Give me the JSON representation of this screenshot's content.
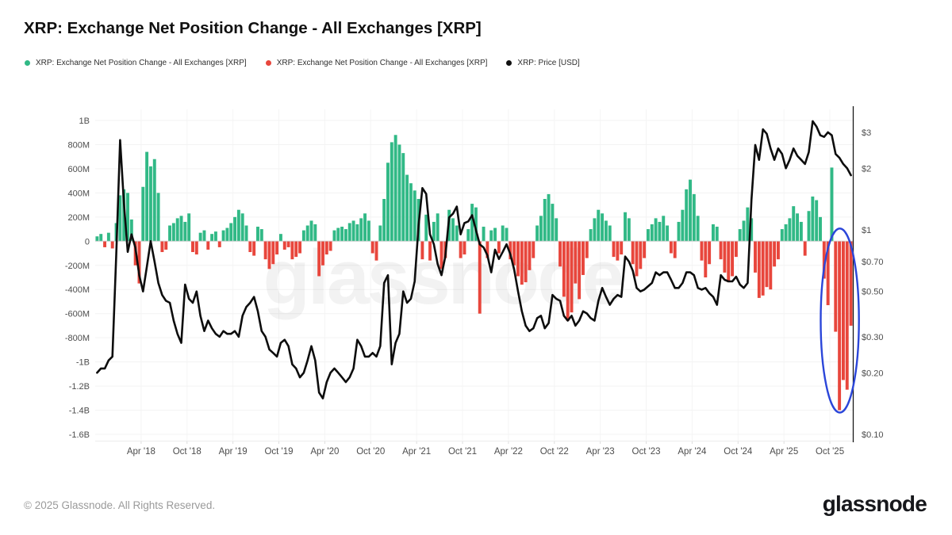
{
  "title": "XRP: Exchange Net Position Change - All Exchanges [XRP]",
  "legend": [
    {
      "label": "XRP: Exchange Net Position Change - All Exchanges [XRP]",
      "color": "#31b986"
    },
    {
      "label": "XRP: Exchange Net Position Change - All Exchanges [XRP]",
      "color": "#e8463c"
    },
    {
      "label": "XRP: Price [USD]",
      "color": "#111111"
    }
  ],
  "watermark": "glassnode",
  "footer": {
    "copyright": "© 2025 Glassnode. All Rights Reserved.",
    "brand": "glassnode"
  },
  "chart_data": {
    "type": "combo",
    "title": "XRP: Exchange Net Position Change - All Exchanges [XRP]",
    "x_start": "Oct 2017",
    "x_end": "Dec 2025",
    "sampling": "semi-monthly (2 samples per month, 99 months)",
    "x_ticks": [
      {
        "label": "Apr '18",
        "month_index": 6
      },
      {
        "label": "Oct '18",
        "month_index": 12
      },
      {
        "label": "Apr '19",
        "month_index": 18
      },
      {
        "label": "Oct '19",
        "month_index": 24
      },
      {
        "label": "Apr '20",
        "month_index": 30
      },
      {
        "label": "Oct '20",
        "month_index": 36
      },
      {
        "label": "Apr '21",
        "month_index": 42
      },
      {
        "label": "Oct '21",
        "month_index": 48
      },
      {
        "label": "Apr '22",
        "month_index": 54
      },
      {
        "label": "Oct '22",
        "month_index": 60
      },
      {
        "label": "Apr '23",
        "month_index": 66
      },
      {
        "label": "Oct '23",
        "month_index": 72
      },
      {
        "label": "Apr '24",
        "month_index": 78
      },
      {
        "label": "Oct '24",
        "month_index": 84
      },
      {
        "label": "Apr '25",
        "month_index": 90
      },
      {
        "label": "Oct '25",
        "month_index": 96
      }
    ],
    "left_axis": {
      "unit": "XRP (millions)",
      "scale": "linear",
      "ticks": [
        {
          "label": "1B",
          "value": 1000
        },
        {
          "label": "800M",
          "value": 800
        },
        {
          "label": "600M",
          "value": 600
        },
        {
          "label": "400M",
          "value": 400
        },
        {
          "label": "200M",
          "value": 200
        },
        {
          "label": "0",
          "value": 0
        },
        {
          "label": "-200M",
          "value": -200
        },
        {
          "label": "-400M",
          "value": -400
        },
        {
          "label": "-600M",
          "value": -600
        },
        {
          "label": "-800M",
          "value": -800
        },
        {
          "label": "-1B",
          "value": -1000
        },
        {
          "label": "-1.2B",
          "value": -1200
        },
        {
          "label": "-1.4B",
          "value": -1400
        },
        {
          "label": "-1.6B",
          "value": -1600
        }
      ]
    },
    "right_axis": {
      "unit": "USD",
      "scale": "log",
      "ticks": [
        {
          "label": "$3",
          "value": 3
        },
        {
          "label": "$2",
          "value": 2
        },
        {
          "label": "$1",
          "value": 1
        },
        {
          "label": "$0.70",
          "value": 0.7
        },
        {
          "label": "$0.50",
          "value": 0.5
        },
        {
          "label": "$0.30",
          "value": 0.3
        },
        {
          "label": "$0.20",
          "value": 0.2
        },
        {
          "label": "$0.10",
          "value": 0.1
        }
      ]
    },
    "series": [
      {
        "name": "XRP: Exchange Net Position Change - All Exchanges [XRP]",
        "type": "bar",
        "axis": "left",
        "unit": "millions of XRP",
        "color_positive": "#31b986",
        "color_negative": "#e8463c",
        "values": [
          40,
          60,
          -50,
          70,
          -60,
          150,
          380,
          430,
          400,
          180,
          -200,
          -350,
          450,
          740,
          620,
          680,
          400,
          -90,
          -70,
          130,
          150,
          190,
          210,
          160,
          230,
          -90,
          -110,
          70,
          90,
          -70,
          60,
          80,
          -50,
          90,
          110,
          150,
          200,
          260,
          230,
          130,
          -90,
          -120,
          120,
          100,
          -150,
          -230,
          -190,
          -110,
          60,
          -70,
          -50,
          -150,
          -130,
          -100,
          90,
          130,
          170,
          140,
          -290,
          -200,
          -110,
          -80,
          90,
          110,
          120,
          100,
          150,
          170,
          140,
          190,
          230,
          170,
          -100,
          -160,
          130,
          350,
          650,
          820,
          880,
          800,
          730,
          550,
          480,
          420,
          350,
          -150,
          220,
          -160,
          160,
          230,
          -230,
          -140,
          260,
          190,
          130,
          -140,
          -110,
          100,
          310,
          280,
          -600,
          120,
          -140,
          90,
          110,
          -100,
          130,
          110,
          -150,
          -200,
          -290,
          -360,
          -340,
          -240,
          -140,
          130,
          210,
          350,
          390,
          310,
          190,
          -210,
          -460,
          -660,
          -590,
          -350,
          -480,
          -280,
          -140,
          100,
          190,
          260,
          230,
          170,
          130,
          -130,
          -160,
          -110,
          240,
          190,
          -190,
          -290,
          -230,
          -140,
          100,
          140,
          190,
          160,
          210,
          130,
          -100,
          -140,
          160,
          260,
          430,
          510,
          390,
          210,
          -160,
          -300,
          -190,
          140,
          120,
          -150,
          -260,
          -340,
          -290,
          -130,
          100,
          170,
          280,
          190,
          -260,
          -470,
          -450,
          -380,
          -400,
          -210,
          -150,
          100,
          140,
          190,
          290,
          230,
          160,
          -120,
          250,
          370,
          340,
          200,
          -310,
          -530,
          610,
          -750,
          -1400,
          -1150,
          -1230,
          -700
        ]
      },
      {
        "name": "XRP: Price [USD]",
        "type": "line",
        "axis": "right",
        "unit": "USD",
        "color": "#0d0d0d",
        "values": [
          0.2,
          0.21,
          0.21,
          0.23,
          0.24,
          0.75,
          2.75,
          1.35,
          0.78,
          0.95,
          0.82,
          0.6,
          0.5,
          0.66,
          0.88,
          0.7,
          0.55,
          0.48,
          0.45,
          0.44,
          0.36,
          0.31,
          0.28,
          0.54,
          0.46,
          0.44,
          0.5,
          0.38,
          0.32,
          0.36,
          0.33,
          0.31,
          0.3,
          0.32,
          0.31,
          0.31,
          0.32,
          0.3,
          0.38,
          0.42,
          0.44,
          0.47,
          0.4,
          0.32,
          0.3,
          0.26,
          0.25,
          0.24,
          0.28,
          0.29,
          0.27,
          0.22,
          0.21,
          0.19,
          0.2,
          0.23,
          0.27,
          0.23,
          0.16,
          0.15,
          0.18,
          0.2,
          0.21,
          0.2,
          0.19,
          0.18,
          0.19,
          0.21,
          0.29,
          0.27,
          0.24,
          0.24,
          0.25,
          0.24,
          0.27,
          0.55,
          0.6,
          0.22,
          0.28,
          0.31,
          0.5,
          0.44,
          0.46,
          0.56,
          1.05,
          1.6,
          1.5,
          0.95,
          0.85,
          0.68,
          0.6,
          0.74,
          1.15,
          1.2,
          1.3,
          0.95,
          1.08,
          1.1,
          1.18,
          1.0,
          0.85,
          0.82,
          0.75,
          0.62,
          0.8,
          0.72,
          0.78,
          0.85,
          0.76,
          0.64,
          0.5,
          0.4,
          0.34,
          0.32,
          0.33,
          0.37,
          0.38,
          0.33,
          0.35,
          0.48,
          0.46,
          0.45,
          0.38,
          0.36,
          0.38,
          0.34,
          0.36,
          0.4,
          0.39,
          0.37,
          0.36,
          0.45,
          0.52,
          0.47,
          0.43,
          0.46,
          0.48,
          0.47,
          0.74,
          0.7,
          0.63,
          0.52,
          0.5,
          0.51,
          0.53,
          0.55,
          0.62,
          0.6,
          0.62,
          0.62,
          0.57,
          0.52,
          0.52,
          0.55,
          0.62,
          0.62,
          0.6,
          0.52,
          0.51,
          0.52,
          0.49,
          0.47,
          0.43,
          0.6,
          0.57,
          0.56,
          0.56,
          0.59,
          0.54,
          0.52,
          0.55,
          1.4,
          2.6,
          2.2,
          3.1,
          2.95,
          2.5,
          2.2,
          2.5,
          2.35,
          2.0,
          2.2,
          2.5,
          2.3,
          2.2,
          2.1,
          2.4,
          3.4,
          3.2,
          2.9,
          2.85,
          3.0,
          2.9,
          2.35,
          2.25,
          2.1,
          2.0,
          1.85
        ]
      }
    ],
    "annotation": {
      "shape": "ellipse",
      "color": "#2b46d9",
      "note": "highlights the very large negative net position change (outflows to -1.4B) in Oct-Dec 2025",
      "x_month_range": [
        94.8,
        99.8
      ],
      "y_value_range_millions": [
        105,
        -1420
      ]
    },
    "grid": true,
    "legend_position": "top-left",
    "colors": {
      "positive_bar": "#31b986",
      "negative_bar": "#e8463c",
      "price_line": "#0d0d0d",
      "annotation": "#2b46d9"
    }
  }
}
